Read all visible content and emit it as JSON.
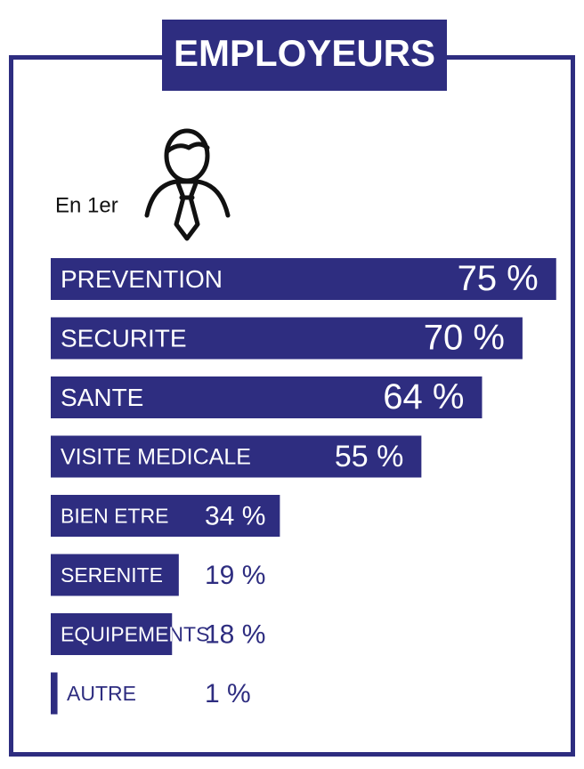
{
  "chart_data": {
    "type": "bar",
    "orientation": "horizontal",
    "title": "EMPLOYEURS",
    "subtitle": "En 1er",
    "categories": [
      "PREVENTION",
      "SECURITE",
      "SANTE",
      "VISITE MEDICALE",
      "BIEN ETRE",
      "SERENITE",
      "EQUIPEMENTS",
      "AUTRE"
    ],
    "values": [
      75,
      70,
      64,
      55,
      34,
      19,
      18,
      1
    ],
    "value_labels": [
      "75 %",
      "70 %",
      "64 %",
      "55 %",
      "34 %",
      "19 %",
      "18 %",
      "1 %"
    ],
    "color": "#2e2d80"
  }
}
